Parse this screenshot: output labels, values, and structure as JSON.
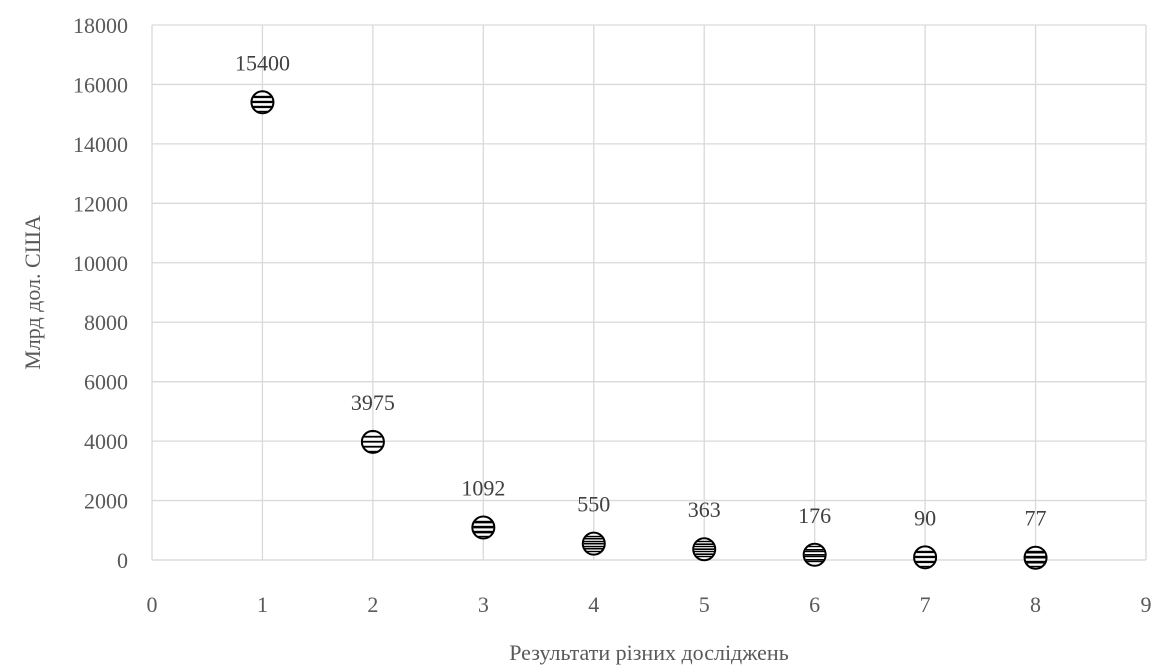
{
  "chart_data": {
    "type": "scatter",
    "title": "",
    "xlabel": "Результати різних досліджень",
    "ylabel": "Млрд дол. США",
    "xlim": [
      0,
      9
    ],
    "ylim": [
      0,
      18000
    ],
    "x_ticks": [
      0,
      1,
      2,
      3,
      4,
      5,
      6,
      7,
      8,
      9
    ],
    "y_ticks": [
      0,
      2000,
      4000,
      6000,
      8000,
      10000,
      12000,
      14000,
      16000,
      18000
    ],
    "grid": true,
    "legend": "none",
    "marker": "circle-horizontal-hatch",
    "series": [
      {
        "x": [
          1,
          2,
          3,
          4,
          5,
          6,
          7,
          8
        ],
        "y": [
          15400,
          3975,
          1092,
          550,
          363,
          176,
          90,
          77
        ],
        "labels": [
          "15400",
          "3975",
          "1092",
          "550",
          "363",
          "176",
          "90",
          "77"
        ]
      }
    ],
    "colors": {
      "grid": "#d9d9d9",
      "marker": "#000000",
      "text": "#595959",
      "label": "#404040"
    }
  }
}
